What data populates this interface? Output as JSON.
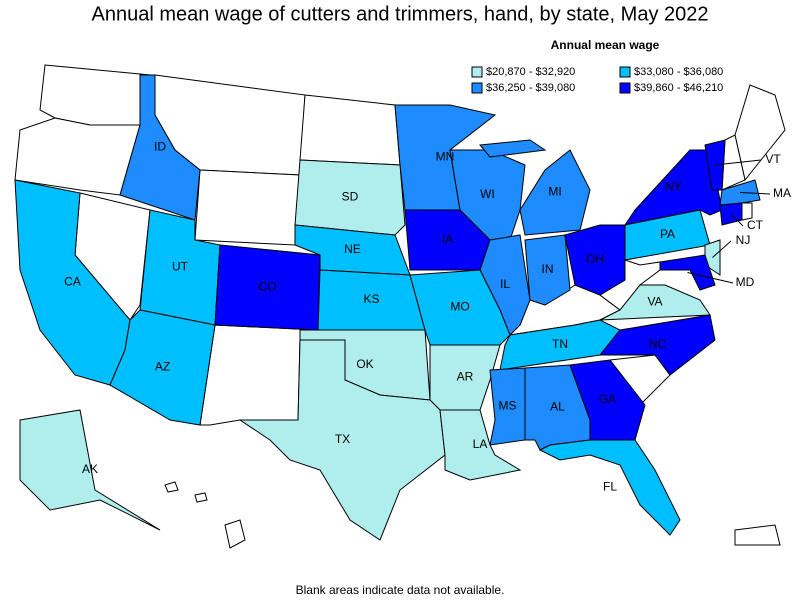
{
  "title": "Annual mean wage of cutters and trimmers, hand, by state, May 2022",
  "legend": {
    "title": "Annual mean wage",
    "classes": [
      {
        "label": "$20,870 - $32,920",
        "color": "#b0eeee"
      },
      {
        "label": "$33,080 - $36,080",
        "color": "#00bfff"
      },
      {
        "label": "$36,250 - $39,080",
        "color": "#1e8cff"
      },
      {
        "label": "$39,860 - $46,210",
        "color": "#0000ff"
      }
    ]
  },
  "states": [
    {
      "label": "ID",
      "class": 2
    },
    {
      "label": "MN",
      "class": 2
    },
    {
      "label": "WI",
      "class": 2
    },
    {
      "label": "MI",
      "class": 2
    },
    {
      "label": "SD",
      "class": 0
    },
    {
      "label": "NY",
      "class": 3
    },
    {
      "label": "VT",
      "class": 3
    },
    {
      "label": "MA",
      "class": 2
    },
    {
      "label": "CT",
      "class": 3
    },
    {
      "label": "IA",
      "class": 3
    },
    {
      "label": "NE",
      "class": 1
    },
    {
      "label": "PA",
      "class": 1
    },
    {
      "label": "NJ",
      "class": 0
    },
    {
      "label": "CA",
      "class": 1
    },
    {
      "label": "UT",
      "class": 1
    },
    {
      "label": "CO",
      "class": 3
    },
    {
      "label": "IL",
      "class": 2
    },
    {
      "label": "IN",
      "class": 2
    },
    {
      "label": "OH",
      "class": 3
    },
    {
      "label": "MD",
      "class": 3
    },
    {
      "label": "KS",
      "class": 1
    },
    {
      "label": "MO",
      "class": 1
    },
    {
      "label": "VA",
      "class": 0
    },
    {
      "label": "TN",
      "class": 1
    },
    {
      "label": "NC",
      "class": 3
    },
    {
      "label": "AZ",
      "class": 1
    },
    {
      "label": "OK",
      "class": 0
    },
    {
      "label": "AR",
      "class": 0
    },
    {
      "label": "MS",
      "class": 2
    },
    {
      "label": "AL",
      "class": 2
    },
    {
      "label": "GA",
      "class": 3
    },
    {
      "label": "TX",
      "class": 0
    },
    {
      "label": "LA",
      "class": 0
    },
    {
      "label": "FL",
      "class": 1
    },
    {
      "label": "AK",
      "class": 0
    }
  ],
  "note": "Blank areas indicate data not available."
}
